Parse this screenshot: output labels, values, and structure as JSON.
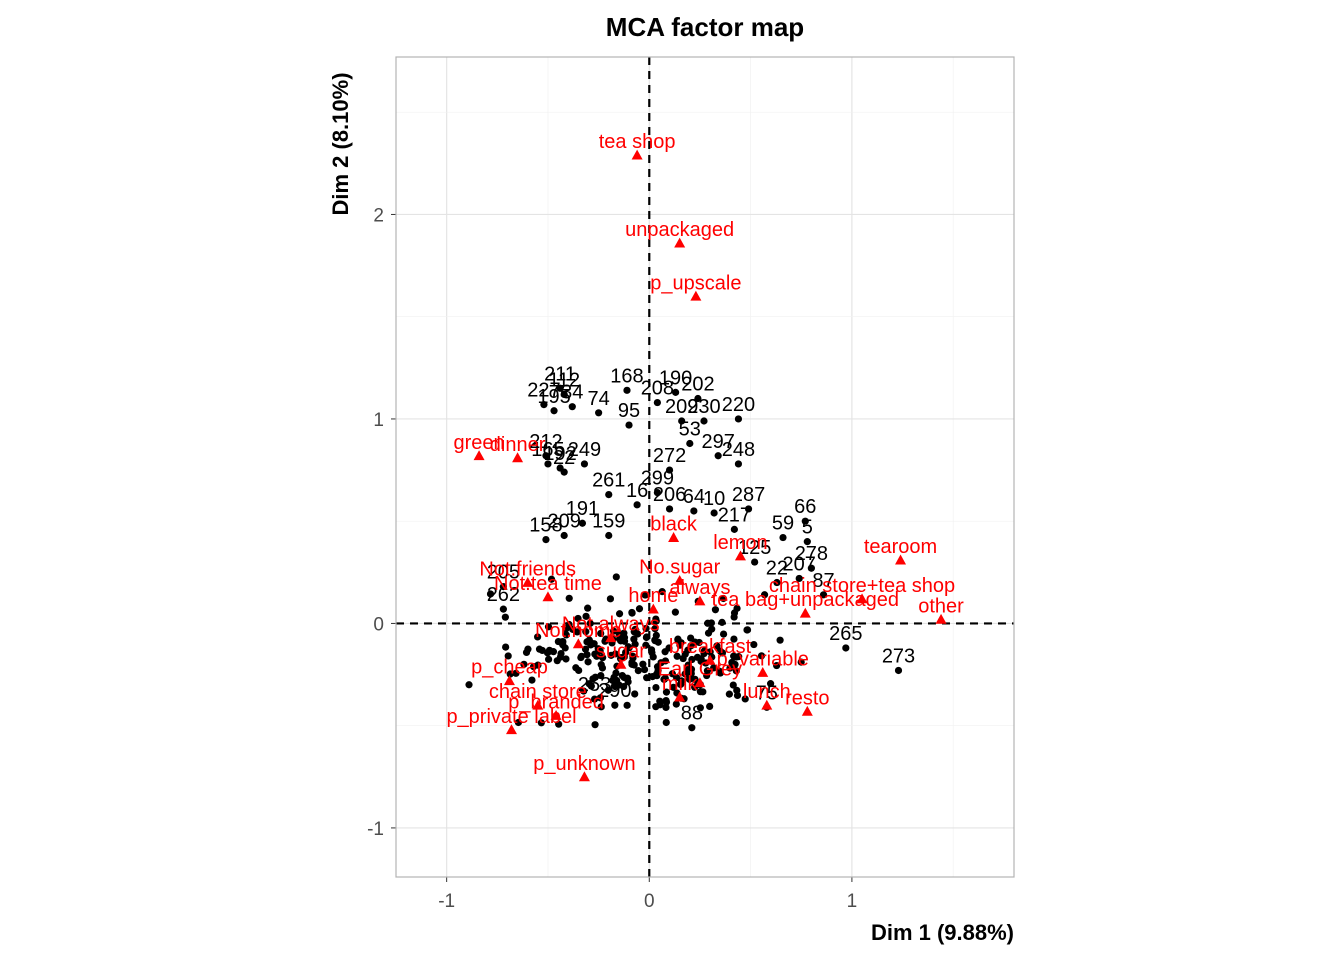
{
  "chart_data": {
    "type": "scatter",
    "title": "MCA factor map",
    "xlabel": "Dim 1 (9.88%)",
    "ylabel": "Dim 2 (8.10%)",
    "xlim": [
      -1.25,
      1.8
    ],
    "ylim": [
      -1.24,
      2.77
    ],
    "xticks": [
      -1,
      0,
      1
    ],
    "xtick_labels": [
      "-1",
      "0",
      "1"
    ],
    "yticks": [
      -1,
      0,
      1,
      2
    ],
    "ytick_labels": [
      "-1",
      "0",
      "1",
      "2"
    ],
    "grid": true,
    "reference_lines": [
      0,
      0
    ],
    "colors": {
      "individuals": "#000000",
      "categories": "#ff0000",
      "grid": "#ebebeb",
      "panel_border": "#b3b3b3"
    },
    "series": [
      {
        "name": "individuals",
        "marker": "circle",
        "points": [
          {
            "label": "195",
            "x": -0.47,
            "y": 1.04
          },
          {
            "label": "211",
            "x": -0.44,
            "y": 1.15
          },
          {
            "label": "227",
            "x": -0.52,
            "y": 1.07
          },
          {
            "label": "112",
            "x": -0.42,
            "y": 1.12
          },
          {
            "label": "34",
            "x": -0.38,
            "y": 1.06
          },
          {
            "label": "168",
            "x": -0.11,
            "y": 1.14
          },
          {
            "label": "74",
            "x": -0.25,
            "y": 1.03
          },
          {
            "label": "95",
            "x": -0.1,
            "y": 0.97
          },
          {
            "label": "208",
            "x": 0.04,
            "y": 1.08
          },
          {
            "label": "190",
            "x": 0.13,
            "y": 1.13
          },
          {
            "label": "202",
            "x": 0.24,
            "y": 1.1
          },
          {
            "label": "209",
            "x": 0.16,
            "y": 0.99
          },
          {
            "label": "230",
            "x": 0.27,
            "y": 0.99
          },
          {
            "label": "220",
            "x": 0.44,
            "y": 1.0
          },
          {
            "label": "53",
            "x": 0.2,
            "y": 0.88
          },
          {
            "label": "212",
            "x": -0.51,
            "y": 0.82
          },
          {
            "label": "165",
            "x": -0.5,
            "y": 0.78
          },
          {
            "label": "192",
            "x": -0.44,
            "y": 0.76
          },
          {
            "label": "22",
            "x": -0.42,
            "y": 0.74
          },
          {
            "label": "249",
            "x": -0.32,
            "y": 0.78
          },
          {
            "label": "297",
            "x": 0.34,
            "y": 0.82
          },
          {
            "label": "248",
            "x": 0.44,
            "y": 0.78
          },
          {
            "label": "272",
            "x": 0.1,
            "y": 0.75
          },
          {
            "label": "299",
            "x": 0.04,
            "y": 0.64
          },
          {
            "label": "261",
            "x": -0.2,
            "y": 0.63
          },
          {
            "label": "16",
            "x": -0.06,
            "y": 0.58
          },
          {
            "label": "206",
            "x": 0.1,
            "y": 0.56
          },
          {
            "label": "64",
            "x": 0.22,
            "y": 0.55
          },
          {
            "label": "10",
            "x": 0.32,
            "y": 0.54
          },
          {
            "label": "287",
            "x": 0.49,
            "y": 0.56
          },
          {
            "label": "66",
            "x": 0.77,
            "y": 0.5
          },
          {
            "label": "191",
            "x": -0.33,
            "y": 0.49
          },
          {
            "label": "209",
            "x": -0.42,
            "y": 0.43
          },
          {
            "label": "159",
            "x": -0.2,
            "y": 0.43
          },
          {
            "label": "158",
            "x": -0.51,
            "y": 0.41
          },
          {
            "label": "217",
            "x": 0.42,
            "y": 0.46
          },
          {
            "label": "59",
            "x": 0.66,
            "y": 0.42
          },
          {
            "label": "5",
            "x": 0.78,
            "y": 0.4
          },
          {
            "label": "278",
            "x": 0.8,
            "y": 0.27
          },
          {
            "label": "87",
            "x": 0.86,
            "y": 0.14
          },
          {
            "label": "207",
            "x": 0.74,
            "y": 0.22
          },
          {
            "label": "22",
            "x": 0.63,
            "y": 0.2
          },
          {
            "label": "125",
            "x": 0.52,
            "y": 0.3
          },
          {
            "label": "265",
            "x": 0.97,
            "y": -0.12
          },
          {
            "label": "273",
            "x": 1.23,
            "y": -0.23
          },
          {
            "label": "290",
            "x": -0.17,
            "y": -0.4
          },
          {
            "label": "88",
            "x": 0.21,
            "y": -0.51
          },
          {
            "label": "75",
            "x": 0.58,
            "y": -0.41
          },
          {
            "label": "205",
            "x": -0.72,
            "y": 0.18
          },
          {
            "label": "262",
            "x": -0.72,
            "y": 0.07
          },
          {
            "label": "253",
            "x": -0.27,
            "y": -0.37
          }
        ]
      },
      {
        "name": "categories",
        "marker": "triangle",
        "points": [
          {
            "label": "tea shop",
            "x": -0.06,
            "y": 2.29
          },
          {
            "label": "unpackaged",
            "x": 0.15,
            "y": 1.86
          },
          {
            "label": "p_upscale",
            "x": 0.23,
            "y": 1.6
          },
          {
            "label": "green",
            "x": -0.84,
            "y": 0.82
          },
          {
            "label": "dinner",
            "x": -0.65,
            "y": 0.81
          },
          {
            "label": "tearoom",
            "x": 1.24,
            "y": 0.31
          },
          {
            "label": "chain store+tea shop",
            "x": 1.05,
            "y": 0.12
          },
          {
            "label": "tea bag+unpackaged",
            "x": 0.77,
            "y": 0.05
          },
          {
            "label": "other",
            "x": 1.44,
            "y": 0.02
          },
          {
            "label": "Not.friends",
            "x": -0.6,
            "y": 0.2
          },
          {
            "label": "Not.tea time",
            "x": -0.5,
            "y": 0.13
          },
          {
            "label": "No.sugar",
            "x": 0.15,
            "y": 0.21
          },
          {
            "label": "always",
            "x": 0.25,
            "y": 0.11
          },
          {
            "label": "lemon",
            "x": 0.45,
            "y": 0.33
          },
          {
            "label": "black",
            "x": 0.12,
            "y": 0.42
          },
          {
            "label": "home",
            "x": 0.02,
            "y": 0.07
          },
          {
            "label": "Not.always",
            "x": -0.19,
            "y": -0.07
          },
          {
            "label": "Not.home",
            "x": -0.35,
            "y": -0.1
          },
          {
            "label": "sugar",
            "x": -0.14,
            "y": -0.2
          },
          {
            "label": "p_cheap",
            "x": -0.69,
            "y": -0.28
          },
          {
            "label": "chain store",
            "x": -0.55,
            "y": -0.4
          },
          {
            "label": "p_branded",
            "x": -0.46,
            "y": -0.45
          },
          {
            "label": "p_private label",
            "x": -0.68,
            "y": -0.52
          },
          {
            "label": "p_unknown",
            "x": -0.32,
            "y": -0.75
          },
          {
            "label": "Earl Grey",
            "x": 0.25,
            "y": -0.29
          },
          {
            "label": "milk",
            "x": 0.15,
            "y": -0.36
          },
          {
            "label": "lunch",
            "x": 0.58,
            "y": -0.4
          },
          {
            "label": "resto",
            "x": 0.78,
            "y": -0.43
          },
          {
            "label": "p_variable",
            "x": 0.56,
            "y": -0.24
          },
          {
            "label": "breakfast",
            "x": 0.3,
            "y": -0.18
          }
        ]
      }
    ]
  }
}
